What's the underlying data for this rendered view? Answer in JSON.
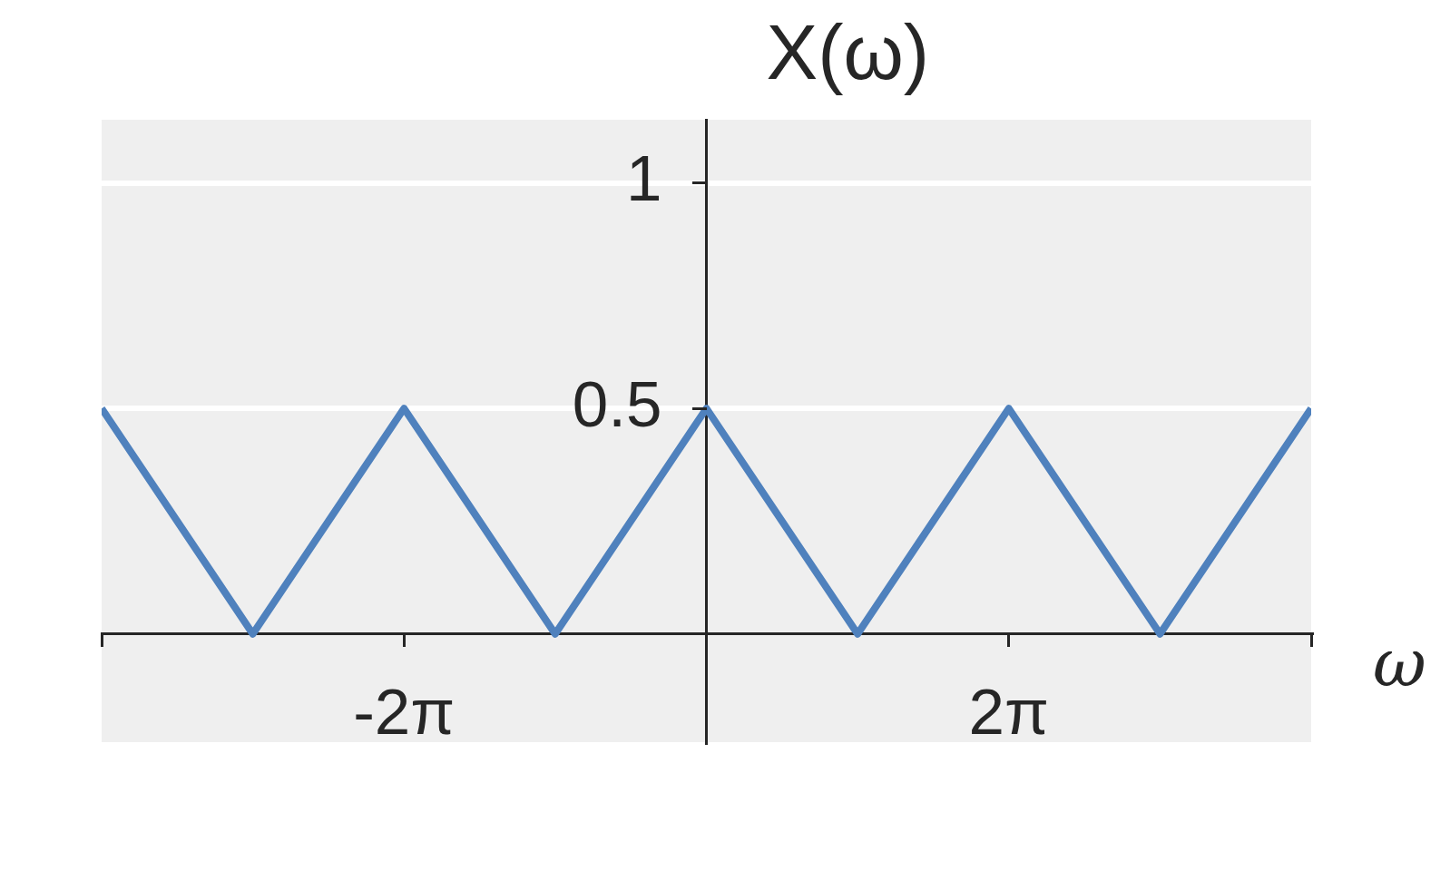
{
  "chart_data": {
    "type": "line",
    "xlabel": "ω",
    "ylabel": "X(ω)",
    "x": [
      -12.566,
      -9.425,
      -6.283,
      -3.142,
      0,
      3.142,
      6.283,
      9.425,
      12.566
    ],
    "series": [
      {
        "color": "#4f81bd",
        "values": [
          0.5,
          0,
          0.5,
          0,
          0.5,
          0,
          0.5,
          0,
          0.5
        ]
      }
    ],
    "xlim": [
      -12.566,
      12.566
    ],
    "ylim": [
      -0.24,
      1.14
    ],
    "xticks": [
      {
        "value": -12.566,
        "label": null
      },
      {
        "value": -6.283,
        "label": "-2π"
      },
      {
        "value": 6.283,
        "label": "2π"
      },
      {
        "value": 12.566,
        "label": null
      }
    ],
    "yticks": [
      0.5,
      1
    ],
    "grid": "y",
    "marker": "none"
  }
}
